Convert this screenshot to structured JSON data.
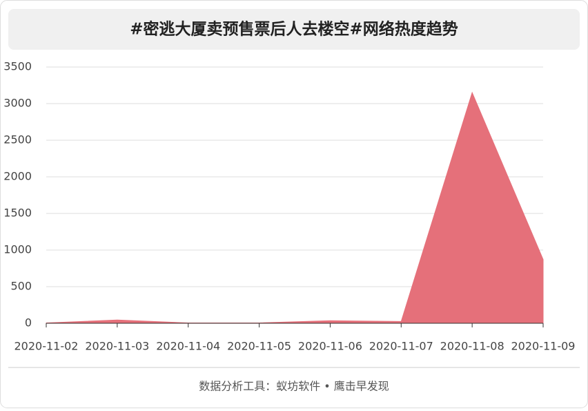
{
  "chart_data": {
    "type": "area",
    "title": "#密逃大厦卖预售票后人去楼空#网络热度趋势",
    "footer": "数据分析工具：蚁坊软件 • 鹰击早发现",
    "x": [
      "2020-11-02",
      "2020-11-03",
      "2020-11-04",
      "2020-11-05",
      "2020-11-06",
      "2020-11-07",
      "2020-11-08",
      "2020-11-09"
    ],
    "values": [
      5,
      45,
      5,
      5,
      35,
      25,
      3150,
      870
    ],
    "color": "#e5707a",
    "ylim": [
      0,
      3500
    ],
    "yticks": [
      0,
      500,
      1000,
      1500,
      2000,
      2500,
      3000,
      3500
    ],
    "grid": true
  }
}
